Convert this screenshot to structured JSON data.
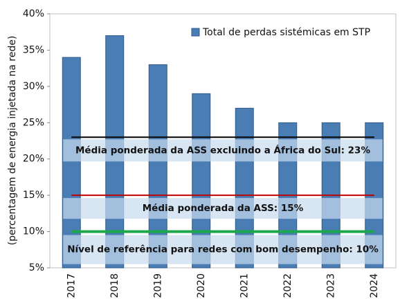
{
  "chart_data": {
    "type": "bar",
    "y_label": "(percentagem de energia injetada na rede)",
    "categories": [
      "2017",
      "2018",
      "2019",
      "2020",
      "2021",
      "2022",
      "2023",
      "2024"
    ],
    "series": [
      {
        "name": "Total de perdas sistémicas em STP",
        "color": "#4a7db3",
        "values": [
          34,
          37,
          33,
          29,
          27,
          25,
          25,
          25
        ]
      }
    ],
    "ylim": [
      5,
      40
    ],
    "yticks": [
      {
        "value": 5,
        "label": "5%"
      },
      {
        "value": 10,
        "label": "10%"
      },
      {
        "value": 15,
        "label": "15%"
      },
      {
        "value": 20,
        "label": "20%"
      },
      {
        "value": 25,
        "label": "25%"
      },
      {
        "value": 30,
        "label": "30%"
      },
      {
        "value": 35,
        "label": "35%"
      },
      {
        "value": 40,
        "label": "40%"
      }
    ],
    "legend": "upper right",
    "reference_lines": [
      {
        "value": 23,
        "label": "Média ponderada da ASS excluindo a África do Sul: 23%",
        "color": "#000000"
      },
      {
        "value": 15,
        "label": "Média ponderada da ASS: 15%",
        "color": "#c00000"
      },
      {
        "value": 10,
        "label": "Nível de referência para redes com bom desempenho: 10%",
        "color": "#1aa84a"
      }
    ]
  }
}
